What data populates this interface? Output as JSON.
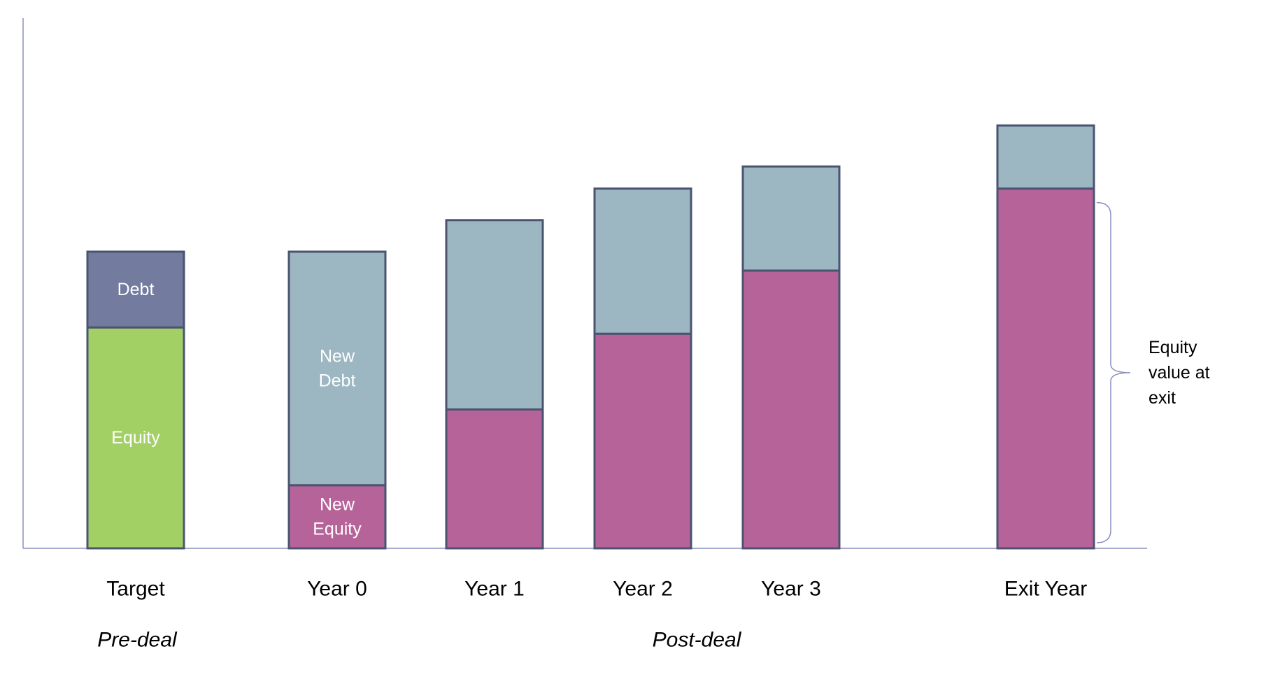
{
  "chart_data": {
    "type": "bar",
    "stacked": true,
    "categories": [
      "Target",
      "Year 0",
      "Year 1",
      "Year 2",
      "Year 3",
      "Exit Year"
    ],
    "series": [
      {
        "key": "equity",
        "values": [
          3.5,
          1.0,
          2.2,
          3.4,
          4.4,
          5.7
        ],
        "segment_labels": [
          [
            "Equity"
          ],
          [
            "New",
            "Equity"
          ],
          [],
          [],
          [],
          []
        ]
      },
      {
        "key": "debt",
        "values": [
          1.2,
          3.7,
          3.0,
          2.3,
          1.65,
          1.0
        ],
        "segment_labels": [
          [
            "Debt"
          ],
          [
            "New",
            "Debt"
          ],
          [],
          [],
          [],
          []
        ]
      }
    ],
    "colors": {
      "equity": [
        "#a3d064",
        "#b66399",
        "#b66399",
        "#b66399",
        "#b66399",
        "#b66399"
      ],
      "debt": [
        "#737b9f",
        "#9cb6c2",
        "#9cb6c2",
        "#9cb6c2",
        "#9cb6c2",
        "#9cb6c2"
      ],
      "outline": "#4a5470",
      "axis": "#8a8fbf"
    },
    "xlabel": "",
    "ylabel": "",
    "ylim": [
      0,
      8.4
    ],
    "grid": false,
    "legend": "none",
    "groups": [
      {
        "label": "Pre-deal",
        "categories": [
          "Target"
        ]
      },
      {
        "label": "Post-deal",
        "categories": [
          "Year 0",
          "Year 1",
          "Year 2",
          "Year 3",
          "Exit Year"
        ]
      }
    ],
    "annotations": [
      {
        "text": [
          "Equity",
          "value at",
          "exit"
        ],
        "target_category": "Exit Year",
        "target_series": "equity",
        "type": "brace"
      }
    ]
  }
}
